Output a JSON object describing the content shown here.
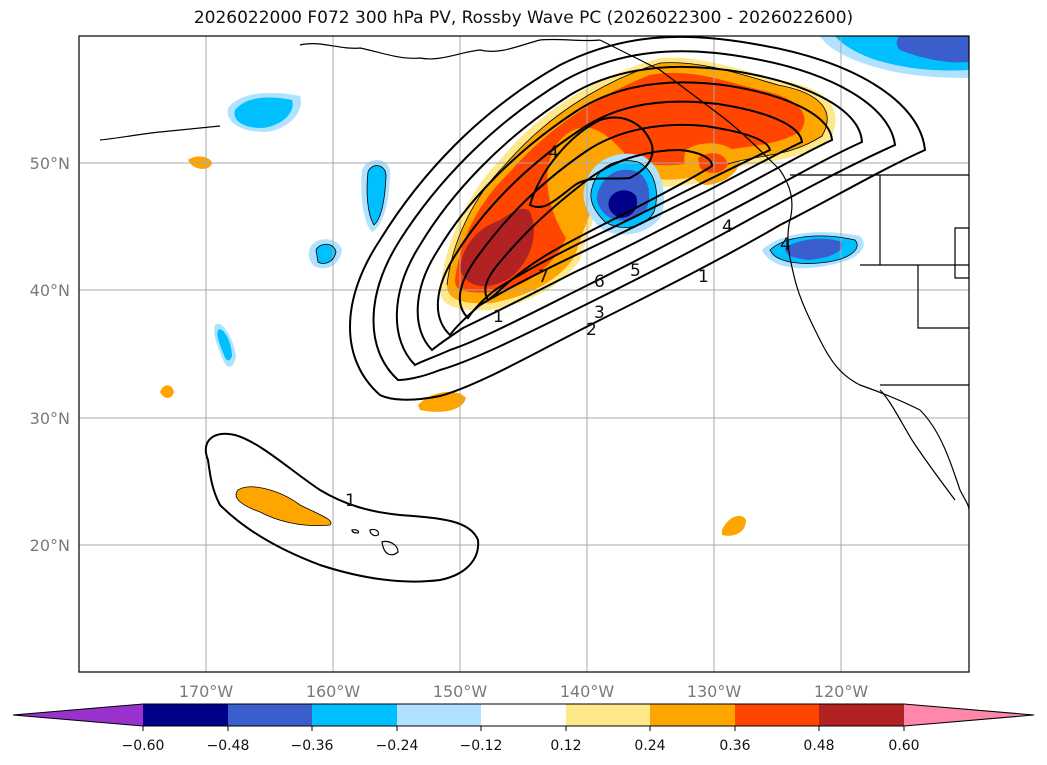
{
  "title": "2026022000 F072 300 hPa PV, Rossby Wave PC (2026022300 - 2026022600)",
  "lat_labels": [
    "50°N",
    "40°N",
    "30°N",
    "20°N"
  ],
  "lon_labels": [
    "170°W",
    "160°W",
    "150°W",
    "140°W",
    "130°W",
    "120°W"
  ],
  "colorbar": {
    "ticks": [
      "−0.60",
      "−0.48",
      "−0.36",
      "−0.24",
      "−0.12",
      "0.12",
      "0.24",
      "0.36",
      "0.48",
      "0.60"
    ],
    "colors": [
      "#9932cc",
      "#00008b",
      "#3a5fcd",
      "#00bfff",
      "#b0e2ff",
      "#ffffff",
      "#ffe88a",
      "#ffa500",
      "#ff4500",
      "#b22222",
      "#ff88aa"
    ]
  },
  "contour_labels": [
    "1",
    "2",
    "3",
    "4",
    "5",
    "6",
    "7",
    "1",
    "4",
    "1",
    "4"
  ]
}
